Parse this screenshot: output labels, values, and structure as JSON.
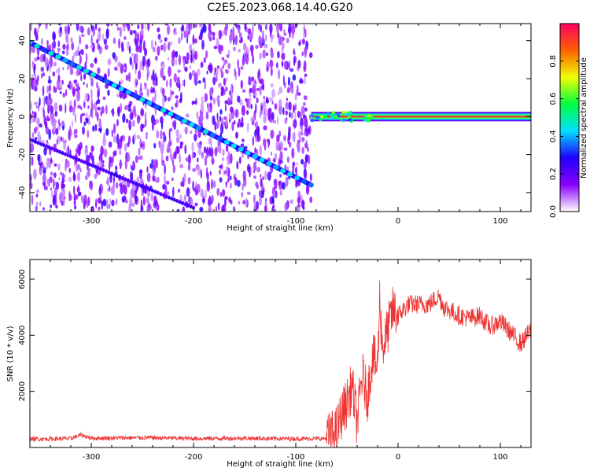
{
  "title": "C2E5.2023.068.14.40.G20",
  "chart_data": [
    {
      "type": "heatmap",
      "xlabel": "Height of straight line (km)",
      "ylabel": "Frequency (Hz)",
      "xlim": [
        -360,
        130
      ],
      "ylim": [
        -50,
        49
      ],
      "xticks": [
        -300,
        -200,
        -100,
        0,
        100
      ],
      "yticks": [
        -40,
        -20,
        0,
        20,
        40
      ],
      "colorbar": {
        "label": "Normalized spectral amplitude",
        "range": [
          0,
          1
        ],
        "ticks": [
          0.0,
          0.2,
          0.4,
          0.6,
          0.8
        ],
        "tick_labels": [
          "0.0",
          "0.2",
          "0.4",
          "0.6",
          "0.8"
        ],
        "colormap": [
          "#ffffff",
          "#8a00ff",
          "#2000ff",
          "#00e0ff",
          "#00ff40",
          "#f0ff00",
          "#ff6000",
          "#ff0060"
        ]
      },
      "noise_region_x": [
        -360,
        -85
      ],
      "features": {
        "descending_trace": {
          "x": [
            -360,
            -85
          ],
          "y": [
            39,
            -36
          ]
        },
        "secondary_trace": {
          "x": [
            -360,
            -200
          ],
          "y": [
            -12,
            -48
          ]
        },
        "steady_carrier": {
          "x": [
            -85,
            130
          ],
          "y": [
            0,
            0
          ]
        }
      }
    },
    {
      "type": "line",
      "xlabel": "Height of straight line (km)",
      "ylabel": "SNR (10 * v/v)",
      "xlim": [
        -360,
        130
      ],
      "ylim": [
        0,
        6700
      ],
      "xticks": [
        -300,
        -200,
        -100,
        0,
        100
      ],
      "yticks": [
        2000,
        4000,
        6000
      ],
      "color": "#ee3333",
      "series": [
        {
          "x": [
            -360,
            -320,
            -310,
            -300,
            -250,
            -200,
            -150,
            -100,
            -70,
            -60,
            -55,
            -50,
            -45,
            -40,
            -35,
            -30,
            -25,
            -20,
            -18,
            -15,
            -10,
            -5,
            0,
            10,
            20,
            30,
            40,
            45,
            50,
            60,
            70,
            80,
            90,
            100,
            110,
            120,
            130
          ],
          "values": [
            300,
            320,
            450,
            330,
            350,
            320,
            330,
            310,
            320,
            600,
            1200,
            1600,
            2200,
            900,
            2600,
            1800,
            3300,
            2800,
            5300,
            3500,
            4200,
            4900,
            4700,
            5100,
            5100,
            5100,
            5400,
            5000,
            4900,
            4700,
            4600,
            4700,
            4300,
            4500,
            4100,
            3700,
            4200
          ]
        }
      ]
    }
  ]
}
